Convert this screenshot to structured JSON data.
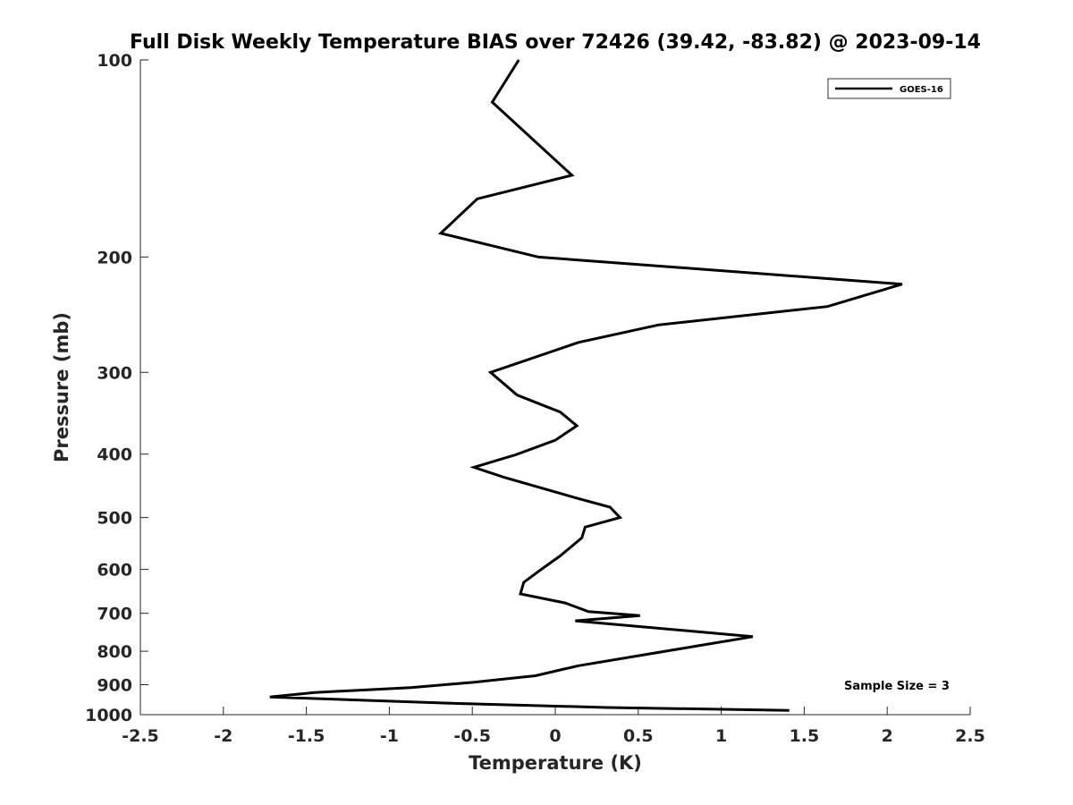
{
  "chart_data": {
    "type": "line",
    "title": "Full Disk Weekly Temperature BIAS over 72426 (39.42, -83.82) @ 2023-09-14",
    "xlabel": "Temperature (K)",
    "ylabel": "Pressure (mb)",
    "xlim": [
      -2.5,
      2.5
    ],
    "ylim": [
      100,
      1000
    ],
    "y_scale": "log",
    "y_reversed": true,
    "xticks": [
      -2.5,
      -2,
      -1.5,
      -1,
      -0.5,
      0,
      0.5,
      1,
      1.5,
      2,
      2.5
    ],
    "xtick_labels": [
      "-2.5",
      "-2",
      "-1.5",
      "-1",
      "-0.5",
      "0",
      "0.5",
      "1",
      "1.5",
      "2",
      "2.5"
    ],
    "yticks": [
      100,
      200,
      300,
      400,
      500,
      600,
      700,
      800,
      900,
      1000
    ],
    "ytick_labels": [
      "100",
      "200",
      "300",
      "400",
      "500",
      "600",
      "700",
      "800",
      "900",
      "1000"
    ],
    "grid": false,
    "legend": {
      "position": "top-right",
      "entries": [
        "GOES-16"
      ]
    },
    "annotation": "Sample Size = 3",
    "series": [
      {
        "name": "GOES-16",
        "color": "#000000",
        "points": [
          {
            "x": -0.22,
            "p": 100
          },
          {
            "x": -0.38,
            "p": 116
          },
          {
            "x": 0.1,
            "p": 150
          },
          {
            "x": -0.47,
            "p": 163
          },
          {
            "x": -0.69,
            "p": 184
          },
          {
            "x": -0.1,
            "p": 200
          },
          {
            "x": 2.09,
            "p": 220
          },
          {
            "x": 1.64,
            "p": 238
          },
          {
            "x": 0.62,
            "p": 254
          },
          {
            "x": 0.14,
            "p": 270
          },
          {
            "x": -0.39,
            "p": 300
          },
          {
            "x": -0.23,
            "p": 325
          },
          {
            "x": 0.03,
            "p": 345
          },
          {
            "x": 0.13,
            "p": 362
          },
          {
            "x": 0.0,
            "p": 381
          },
          {
            "x": -0.24,
            "p": 401
          },
          {
            "x": -0.49,
            "p": 419
          },
          {
            "x": -0.31,
            "p": 434
          },
          {
            "x": 0.13,
            "p": 467
          },
          {
            "x": 0.33,
            "p": 482
          },
          {
            "x": 0.39,
            "p": 500
          },
          {
            "x": 0.18,
            "p": 517
          },
          {
            "x": 0.16,
            "p": 537
          },
          {
            "x": 0.03,
            "p": 572
          },
          {
            "x": -0.1,
            "p": 604
          },
          {
            "x": -0.19,
            "p": 628
          },
          {
            "x": -0.21,
            "p": 654
          },
          {
            "x": 0.06,
            "p": 675
          },
          {
            "x": 0.2,
            "p": 696
          },
          {
            "x": 0.51,
            "p": 706
          },
          {
            "x": 0.12,
            "p": 719
          },
          {
            "x": 1.19,
            "p": 760
          },
          {
            "x": 0.86,
            "p": 785
          },
          {
            "x": 0.14,
            "p": 842
          },
          {
            "x": -0.12,
            "p": 872
          },
          {
            "x": -0.49,
            "p": 892
          },
          {
            "x": -0.87,
            "p": 909
          },
          {
            "x": -1.45,
            "p": 925
          },
          {
            "x": -1.72,
            "p": 940
          },
          {
            "x": -0.67,
            "p": 960
          },
          {
            "x": 0.31,
            "p": 975
          },
          {
            "x": 1.41,
            "p": 985
          }
        ]
      }
    ]
  }
}
